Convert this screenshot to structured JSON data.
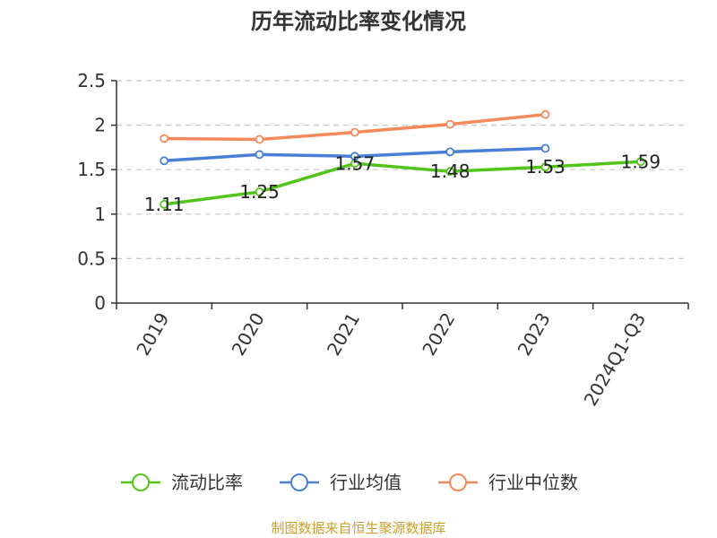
{
  "chart_data": {
    "type": "line",
    "title": "历年流动比率变化情况",
    "categories": [
      "2019",
      "2020",
      "2021",
      "2022",
      "2023",
      "2024Q1-Q3"
    ],
    "ylim": [
      0,
      2.5
    ],
    "yticks": [
      "0",
      "0.5",
      "1",
      "1.5",
      "2",
      "2.5"
    ],
    "grid": true,
    "legend_position": "bottom",
    "series": [
      {
        "name": "流动比率",
        "color": "#52c41a",
        "values": [
          1.11,
          1.25,
          1.57,
          1.48,
          1.53,
          1.59
        ],
        "labels": [
          "1.11",
          "1.25",
          "1.57",
          "1.48",
          "1.53",
          "1.59"
        ]
      },
      {
        "name": "行业均值",
        "color": "#4a7fd8",
        "values": [
          1.6,
          1.67,
          1.65,
          1.7,
          1.74,
          null
        ]
      },
      {
        "name": "行业中位数",
        "color": "#f5895a",
        "values": [
          1.85,
          1.84,
          1.92,
          2.01,
          2.12,
          null
        ]
      }
    ],
    "source": "制图数据来自恒生聚源数据库"
  }
}
